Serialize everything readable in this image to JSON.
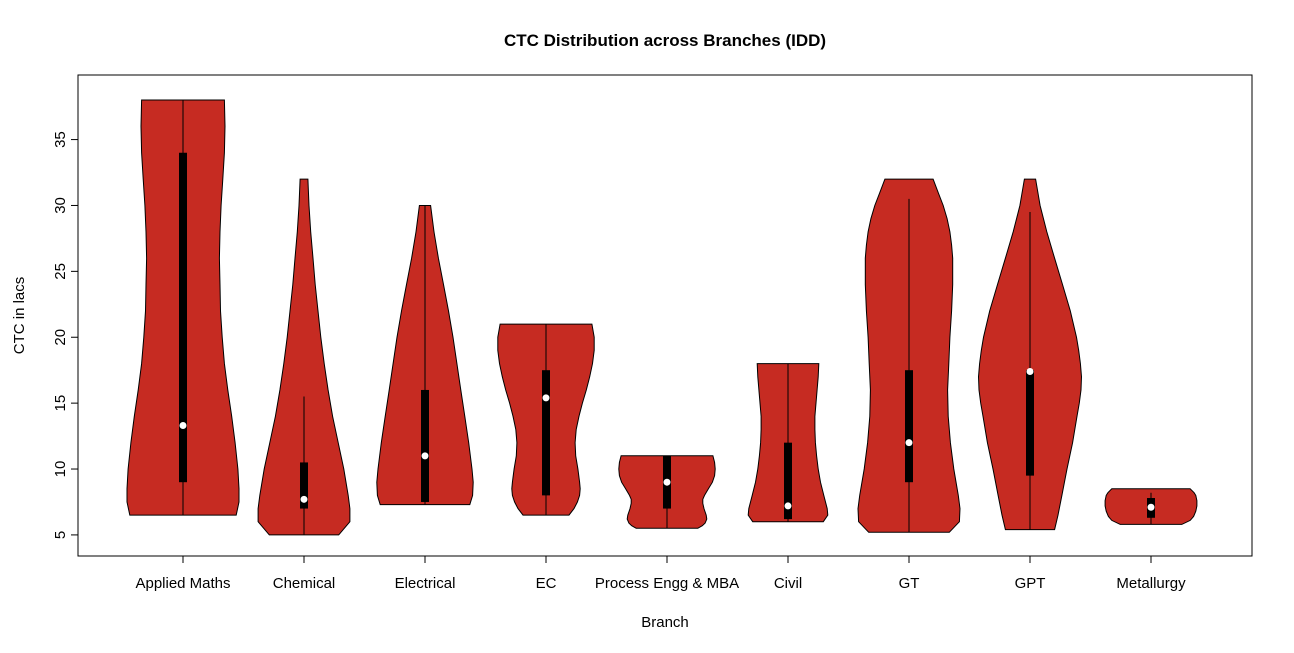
{
  "chart_data": {
    "type": "violin",
    "title": "CTC Distribution across Branches (IDD)",
    "xlabel": "Branch",
    "ylabel": "CTC in lacs",
    "ylim": [
      3.4,
      39.9
    ],
    "yticks": [
      5,
      10,
      15,
      20,
      25,
      30,
      35
    ],
    "grid": false,
    "legend": "none",
    "violin_fill": "#C62B22",
    "violin_stroke": "#000000",
    "box_color": "#000000",
    "median_dot_color": "#ffffff",
    "categories": [
      "Applied Maths",
      "Chemical",
      "Electrical",
      "EC",
      "Process Engg & MBA",
      "Civil",
      "GT",
      "GPT",
      "Metallurgy"
    ],
    "series": [
      {
        "name": "Applied Maths",
        "range": [
          6.5,
          38
        ],
        "whiskers": [
          6.5,
          38
        ],
        "q1": 9,
        "q3": 34,
        "median": 13.3,
        "profile": [
          [
            38,
            0.74
          ],
          [
            36,
            0.75
          ],
          [
            34,
            0.74
          ],
          [
            32,
            0.71
          ],
          [
            30,
            0.68
          ],
          [
            28,
            0.66
          ],
          [
            26,
            0.65
          ],
          [
            24,
            0.66
          ],
          [
            22,
            0.67
          ],
          [
            20,
            0.7
          ],
          [
            18,
            0.74
          ],
          [
            16,
            0.8
          ],
          [
            14,
            0.87
          ],
          [
            12,
            0.93
          ],
          [
            10,
            0.98
          ],
          [
            8.5,
            1.0
          ],
          [
            7.5,
            1.0
          ],
          [
            6.5,
            0.95
          ]
        ]
      },
      {
        "name": "Chemical",
        "range": [
          5,
          32
        ],
        "whiskers": [
          5,
          15.5
        ],
        "q1": 7,
        "q3": 10.5,
        "median": 7.7,
        "profile": [
          [
            32,
            0.07
          ],
          [
            30,
            0.09
          ],
          [
            28,
            0.12
          ],
          [
            26,
            0.16
          ],
          [
            24,
            0.2
          ],
          [
            22,
            0.25
          ],
          [
            20,
            0.3
          ],
          [
            18,
            0.36
          ],
          [
            16,
            0.43
          ],
          [
            14,
            0.51
          ],
          [
            12,
            0.61
          ],
          [
            10,
            0.71
          ],
          [
            8,
            0.79
          ],
          [
            7,
            0.82
          ],
          [
            6,
            0.82
          ],
          [
            5,
            0.62
          ]
        ]
      },
      {
        "name": "Electrical",
        "range": [
          7.3,
          30
        ],
        "whiskers": [
          7.3,
          30
        ],
        "q1": 7.5,
        "q3": 16,
        "median": 11,
        "profile": [
          [
            30,
            0.1
          ],
          [
            28,
            0.16
          ],
          [
            26,
            0.24
          ],
          [
            24,
            0.33
          ],
          [
            22,
            0.42
          ],
          [
            20,
            0.5
          ],
          [
            18,
            0.57
          ],
          [
            16,
            0.64
          ],
          [
            14,
            0.71
          ],
          [
            12,
            0.78
          ],
          [
            10,
            0.84
          ],
          [
            9,
            0.86
          ],
          [
            8,
            0.85
          ],
          [
            7.3,
            0.8
          ]
        ]
      },
      {
        "name": "EC",
        "range": [
          6.5,
          21
        ],
        "whiskers": [
          6.5,
          21
        ],
        "q1": 8,
        "q3": 17.5,
        "median": 15.4,
        "profile": [
          [
            21,
            0.82
          ],
          [
            20,
            0.86
          ],
          [
            19,
            0.86
          ],
          [
            18,
            0.83
          ],
          [
            17,
            0.78
          ],
          [
            16,
            0.72
          ],
          [
            15,
            0.65
          ],
          [
            14,
            0.59
          ],
          [
            13,
            0.54
          ],
          [
            12,
            0.52
          ],
          [
            11,
            0.53
          ],
          [
            10,
            0.57
          ],
          [
            9,
            0.6
          ],
          [
            8.5,
            0.61
          ],
          [
            8,
            0.6
          ],
          [
            7.5,
            0.56
          ],
          [
            7,
            0.5
          ],
          [
            6.5,
            0.41
          ]
        ]
      },
      {
        "name": "Process Engg & MBA",
        "range": [
          5.5,
          11
        ],
        "whiskers": [
          5.5,
          11
        ],
        "q1": 7,
        "q3": 11,
        "median": 9,
        "profile": [
          [
            11,
            0.82
          ],
          [
            10.5,
            0.85
          ],
          [
            10,
            0.86
          ],
          [
            9.5,
            0.85
          ],
          [
            9,
            0.81
          ],
          [
            8.5,
            0.74
          ],
          [
            8,
            0.67
          ],
          [
            7.7,
            0.64
          ],
          [
            7.4,
            0.64
          ],
          [
            7,
            0.66
          ],
          [
            6.5,
            0.7
          ],
          [
            6.2,
            0.71
          ],
          [
            5.9,
            0.68
          ],
          [
            5.7,
            0.63
          ],
          [
            5.5,
            0.55
          ]
        ]
      },
      {
        "name": "Civil",
        "range": [
          6,
          18
        ],
        "whiskers": [
          6,
          18
        ],
        "q1": 6.2,
        "q3": 12,
        "median": 7.2,
        "profile": [
          [
            18,
            0.55
          ],
          [
            17,
            0.54
          ],
          [
            16,
            0.52
          ],
          [
            15,
            0.5
          ],
          [
            14,
            0.48
          ],
          [
            13,
            0.48
          ],
          [
            12,
            0.49
          ],
          [
            11,
            0.51
          ],
          [
            10,
            0.54
          ],
          [
            9,
            0.58
          ],
          [
            8,
            0.64
          ],
          [
            7,
            0.7
          ],
          [
            6.5,
            0.71
          ],
          [
            6,
            0.63
          ]
        ]
      },
      {
        "name": "GT",
        "range": [
          5.2,
          32
        ],
        "whiskers": [
          5.2,
          30.5
        ],
        "q1": 9,
        "q3": 17.5,
        "median": 12,
        "profile": [
          [
            32,
            0.43
          ],
          [
            31,
            0.52
          ],
          [
            30,
            0.61
          ],
          [
            29,
            0.68
          ],
          [
            28,
            0.73
          ],
          [
            27,
            0.76
          ],
          [
            26,
            0.78
          ],
          [
            24,
            0.78
          ],
          [
            22,
            0.76
          ],
          [
            20,
            0.73
          ],
          [
            18,
            0.71
          ],
          [
            16,
            0.69
          ],
          [
            14,
            0.7
          ],
          [
            12,
            0.74
          ],
          [
            10,
            0.8
          ],
          [
            8,
            0.88
          ],
          [
            7,
            0.91
          ],
          [
            6,
            0.9
          ],
          [
            5.2,
            0.72
          ]
        ]
      },
      {
        "name": "GPT",
        "range": [
          5.4,
          32
        ],
        "whiskers": [
          5.4,
          29.5
        ],
        "q1": 9.5,
        "q3": 17.5,
        "median": 17.4,
        "profile": [
          [
            32,
            0.1
          ],
          [
            30,
            0.18
          ],
          [
            28,
            0.3
          ],
          [
            26,
            0.44
          ],
          [
            24,
            0.58
          ],
          [
            22,
            0.72
          ],
          [
            20,
            0.83
          ],
          [
            19,
            0.87
          ],
          [
            18,
            0.9
          ],
          [
            17,
            0.92
          ],
          [
            16,
            0.91
          ],
          [
            15,
            0.88
          ],
          [
            14,
            0.84
          ],
          [
            12,
            0.76
          ],
          [
            10,
            0.66
          ],
          [
            8,
            0.57
          ],
          [
            6.5,
            0.5
          ],
          [
            5.4,
            0.44
          ]
        ]
      },
      {
        "name": "Metallurgy",
        "range": [
          5.8,
          8.5
        ],
        "whiskers": [
          5.8,
          8.2
        ],
        "q1": 6.3,
        "q3": 7.8,
        "median": 7.1,
        "profile": [
          [
            8.5,
            0.7
          ],
          [
            8.2,
            0.77
          ],
          [
            8,
            0.8
          ],
          [
            7.6,
            0.82
          ],
          [
            7.2,
            0.82
          ],
          [
            6.8,
            0.8
          ],
          [
            6.4,
            0.76
          ],
          [
            6.1,
            0.7
          ],
          [
            5.8,
            0.55
          ]
        ]
      }
    ]
  }
}
